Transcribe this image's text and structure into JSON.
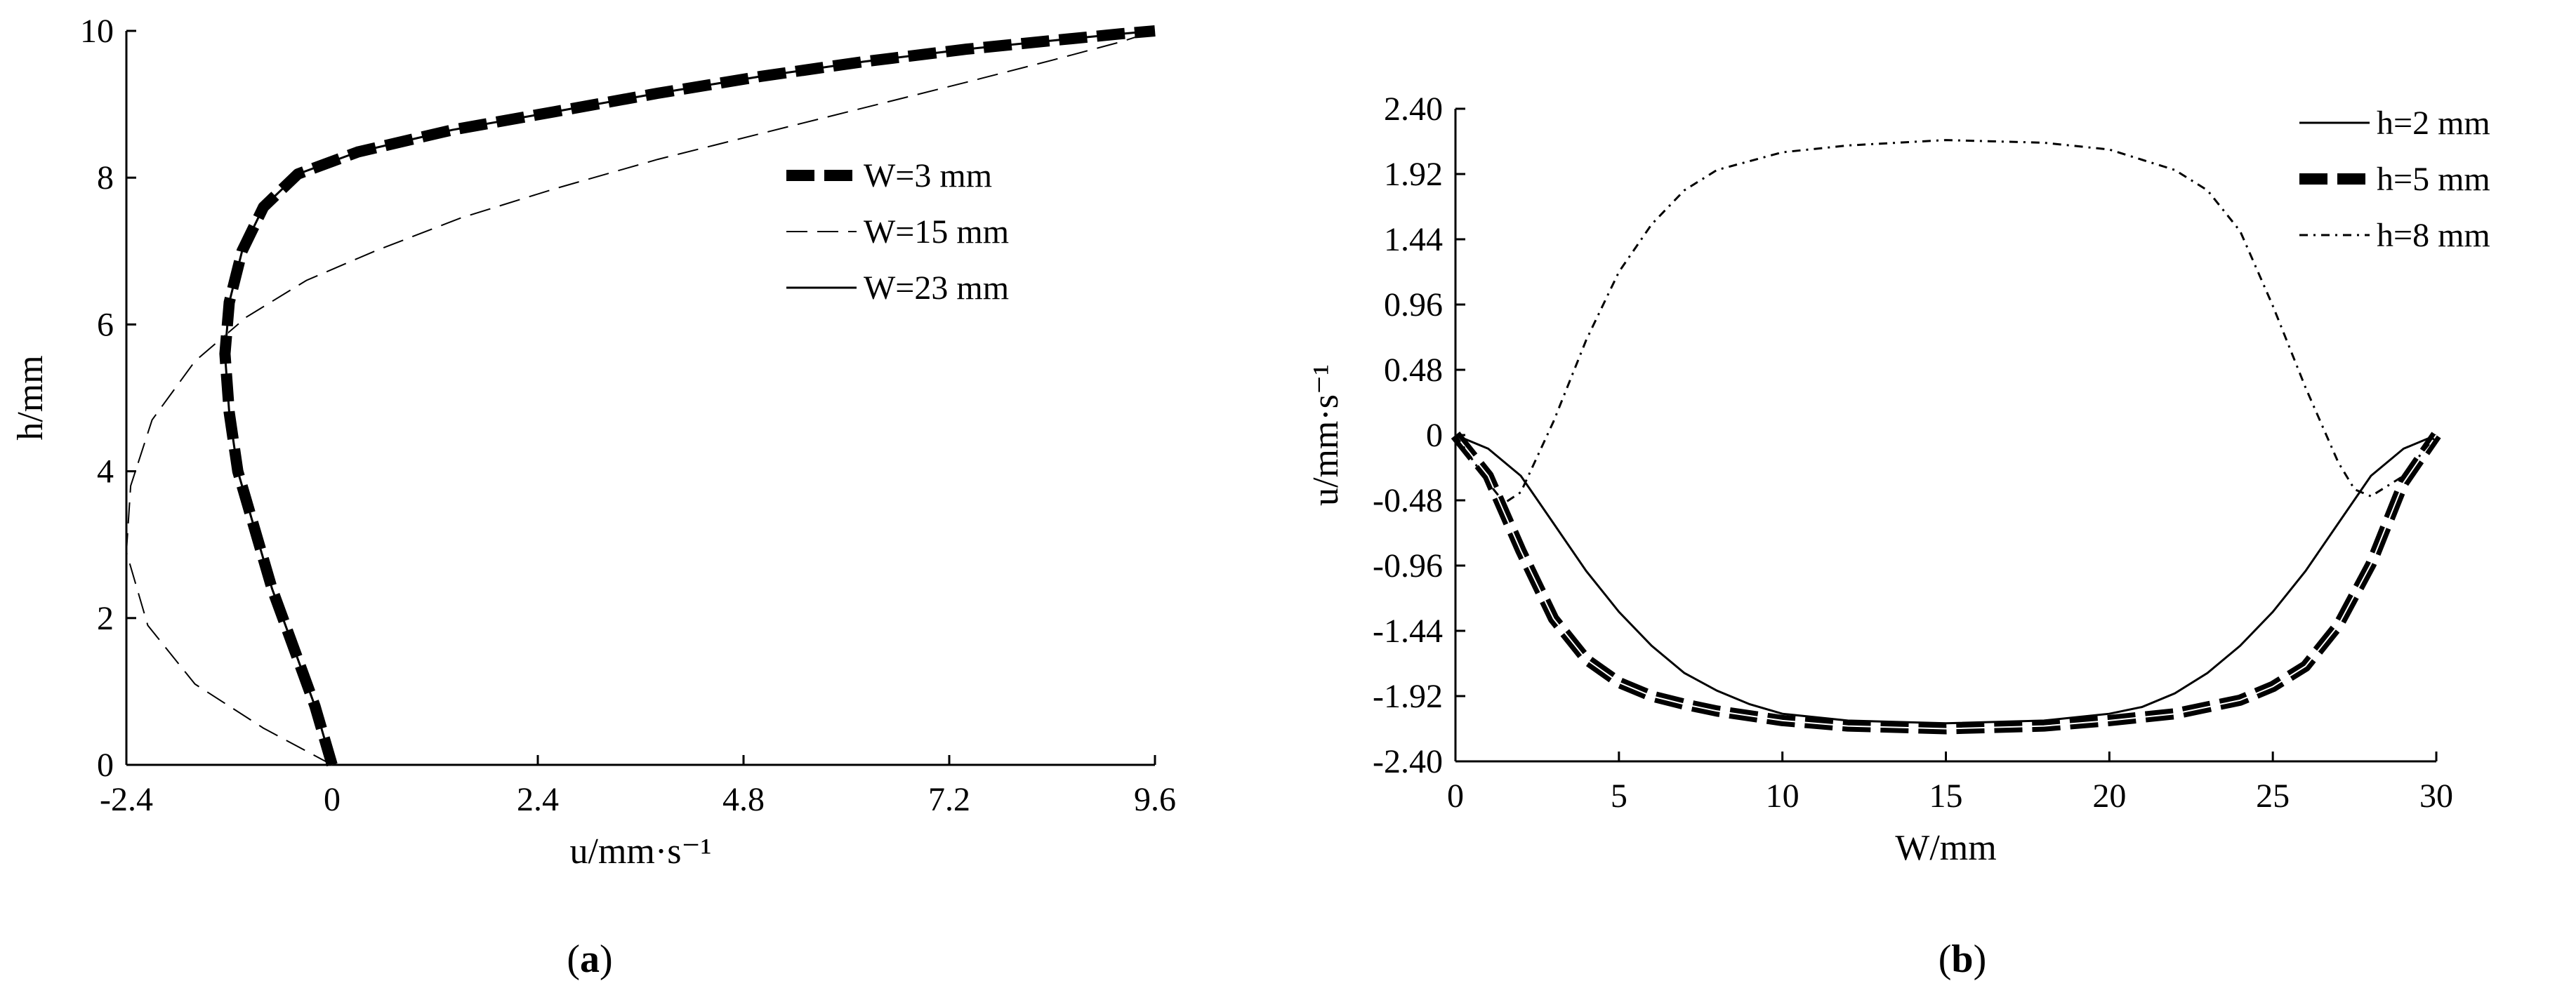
{
  "chart_data": [
    {
      "panel": "a",
      "caption": "(a)",
      "type": "line",
      "xlabel": "u/mm·s⁻¹",
      "ylabel": "h/mm",
      "xlim": [
        -2.4,
        9.6
      ],
      "ylim": [
        0,
        10
      ],
      "xticks": [
        "-2.4",
        "0",
        "2.4",
        "4.8",
        "7.2",
        "9.6"
      ],
      "yticks": [
        "0",
        "2",
        "4",
        "6",
        "8",
        "10"
      ],
      "legend_position": "right",
      "series": [
        {
          "name": "W=3 mm",
          "style": "thick-dashed",
          "x": [
            0.0,
            -0.2,
            -0.45,
            -0.7,
            -0.9,
            -1.1,
            -1.2,
            -1.25,
            -1.2,
            -1.05,
            -0.8,
            -0.4,
            0.3,
            1.4,
            2.6,
            3.8,
            5.0,
            6.2,
            7.4,
            8.5,
            9.2,
            9.6
          ],
          "y": [
            0.0,
            0.8,
            1.6,
            2.4,
            3.2,
            4.0,
            4.8,
            5.6,
            6.3,
            7.0,
            7.6,
            8.05,
            8.35,
            8.65,
            8.9,
            9.15,
            9.38,
            9.58,
            9.75,
            9.88,
            9.96,
            10.0
          ]
        },
        {
          "name": "W=15 mm",
          "style": "thin-dashed",
          "x": [
            0.0,
            -0.8,
            -1.6,
            -2.15,
            -2.4,
            -2.35,
            -2.1,
            -1.6,
            -1.0,
            -0.3,
            0.5,
            1.5,
            2.6,
            3.8,
            5.0,
            6.2,
            7.4,
            8.4,
            9.2,
            9.6
          ],
          "y": [
            0.0,
            0.5,
            1.1,
            1.9,
            2.9,
            3.8,
            4.7,
            5.5,
            6.1,
            6.6,
            7.0,
            7.45,
            7.85,
            8.25,
            8.6,
            8.95,
            9.3,
            9.6,
            9.85,
            10.0
          ]
        },
        {
          "name": "W=23 mm",
          "style": "thin-solid",
          "x": [
            0.0,
            -0.2,
            -0.45,
            -0.7,
            -0.9,
            -1.1,
            -1.2,
            -1.25,
            -1.2,
            -1.05,
            -0.8,
            -0.4,
            0.3,
            1.4,
            2.6,
            3.8,
            5.0,
            6.2,
            7.4,
            8.5,
            9.2,
            9.6
          ],
          "y": [
            0.0,
            0.8,
            1.6,
            2.4,
            3.2,
            4.0,
            4.8,
            5.6,
            6.3,
            7.0,
            7.6,
            8.05,
            8.35,
            8.65,
            8.9,
            9.15,
            9.38,
            9.58,
            9.75,
            9.88,
            9.96,
            10.0
          ]
        }
      ]
    },
    {
      "panel": "b",
      "caption": "(b)",
      "type": "line",
      "xlabel": "W/mm",
      "ylabel": "u/mm·s⁻¹",
      "xlim": [
        0,
        30
      ],
      "ylim": [
        -2.4,
        2.4
      ],
      "xticks": [
        "0",
        "5",
        "10",
        "15",
        "20",
        "25",
        "30"
      ],
      "yticks": [
        "-2.40",
        "-1.92",
        "-1.44",
        "-0.96",
        "-0.48",
        "0",
        "0.48",
        "0.96",
        "1.44",
        "1.92",
        "2.40"
      ],
      "legend_position": "top-right",
      "series": [
        {
          "name": "h=2 mm",
          "style": "thin-solid",
          "x": [
            0,
            1,
            2,
            3,
            4,
            5,
            6,
            7,
            8,
            9,
            10,
            12,
            15,
            18,
            20,
            21,
            22,
            23,
            24,
            25,
            26,
            27,
            28,
            29,
            30
          ],
          "y": [
            0.0,
            -0.1,
            -0.3,
            -0.65,
            -1.0,
            -1.3,
            -1.55,
            -1.75,
            -1.88,
            -1.98,
            -2.05,
            -2.1,
            -2.12,
            -2.1,
            -2.05,
            -2.0,
            -1.9,
            -1.75,
            -1.55,
            -1.3,
            -1.0,
            -0.65,
            -0.3,
            -0.1,
            0.0
          ]
        },
        {
          "name": "h=5 mm",
          "style": "thick-dashed",
          "x": [
            0,
            1,
            2,
            3,
            4,
            5,
            6,
            7,
            8,
            10,
            12,
            15,
            18,
            20,
            22,
            23,
            24,
            25,
            26,
            27,
            28,
            29,
            30
          ],
          "y": [
            0.0,
            -0.3,
            -0.85,
            -1.35,
            -1.65,
            -1.82,
            -1.92,
            -1.98,
            -2.03,
            -2.1,
            -2.14,
            -2.16,
            -2.14,
            -2.1,
            -2.05,
            -2.0,
            -1.95,
            -1.85,
            -1.7,
            -1.4,
            -0.95,
            -0.35,
            0.0
          ]
        },
        {
          "name": "h=8 mm",
          "style": "dash-dot",
          "x": [
            0,
            1,
            1.5,
            2,
            3,
            4,
            5,
            6,
            7,
            8,
            10,
            12,
            15,
            18,
            20,
            22,
            23,
            24,
            25,
            26,
            27,
            27.5,
            28,
            29,
            30
          ],
          "y": [
            0.0,
            -0.35,
            -0.5,
            -0.42,
            0.1,
            0.7,
            1.2,
            1.55,
            1.8,
            1.95,
            2.08,
            2.13,
            2.17,
            2.15,
            2.1,
            1.95,
            1.8,
            1.5,
            0.95,
            0.35,
            -0.2,
            -0.4,
            -0.45,
            -0.3,
            0.0
          ]
        }
      ]
    }
  ]
}
